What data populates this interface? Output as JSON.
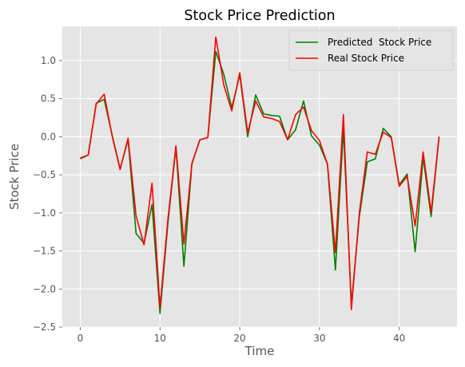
{
  "chart_data": {
    "type": "line",
    "title": "Stock Price Prediction",
    "xlabel": "Time",
    "ylabel": "Stock Price",
    "xlim": [
      -2.25,
      47.25
    ],
    "ylim": [
      -2.5,
      1.45
    ],
    "xticks": [
      0,
      10,
      20,
      30,
      40
    ],
    "yticks": [
      -2.5,
      -2.0,
      -1.5,
      -1.0,
      -0.5,
      0.0,
      0.5,
      1.0
    ],
    "ytick_labels": [
      "−2.5",
      "−2.0",
      "−1.5",
      "−1.0",
      "−0.5",
      "0.0",
      "0.5",
      "1.0"
    ],
    "grid": true,
    "legend_position": "upper right",
    "x": [
      0,
      1,
      2,
      3,
      4,
      5,
      6,
      7,
      8,
      9,
      10,
      11,
      12,
      13,
      14,
      15,
      16,
      17,
      18,
      19,
      20,
      21,
      22,
      23,
      24,
      25,
      26,
      27,
      28,
      29,
      30,
      31,
      32,
      33,
      34,
      35,
      36,
      37,
      38,
      39,
      40,
      41,
      42,
      43,
      44,
      45
    ],
    "series": [
      {
        "name": "Predicted  Stock Price",
        "color": "#008000",
        "values": [
          -0.29,
          -0.24,
          0.44,
          0.49,
          0.02,
          -0.42,
          -0.04,
          -1.27,
          -1.4,
          -0.89,
          -2.32,
          -1.13,
          -0.14,
          -1.7,
          -0.36,
          -0.04,
          -0.01,
          1.12,
          0.82,
          0.38,
          0.81,
          0.0,
          0.55,
          0.3,
          0.28,
          0.27,
          -0.04,
          0.09,
          0.47,
          0.01,
          -0.11,
          -0.36,
          -1.75,
          0.1,
          -2.2,
          -1.05,
          -0.33,
          -0.29,
          0.11,
          0.0,
          -0.63,
          -0.49,
          -1.51,
          -0.27,
          -1.05,
          0.0
        ]
      },
      {
        "name": "Real Stock Price",
        "color": "#ff0000",
        "values": [
          -0.28,
          -0.24,
          0.43,
          0.56,
          0.01,
          -0.43,
          -0.02,
          -1.04,
          -1.42,
          -0.61,
          -2.24,
          -1.08,
          -0.12,
          -1.41,
          -0.35,
          -0.04,
          -0.01,
          1.31,
          0.68,
          0.34,
          0.84,
          0.05,
          0.47,
          0.26,
          0.24,
          0.2,
          -0.04,
          0.29,
          0.39,
          0.08,
          -0.05,
          -0.36,
          -1.52,
          0.29,
          -2.27,
          -1.0,
          -0.2,
          -0.23,
          0.06,
          -0.01,
          -0.65,
          -0.52,
          -1.17,
          -0.2,
          -0.99,
          0.0
        ]
      }
    ]
  }
}
